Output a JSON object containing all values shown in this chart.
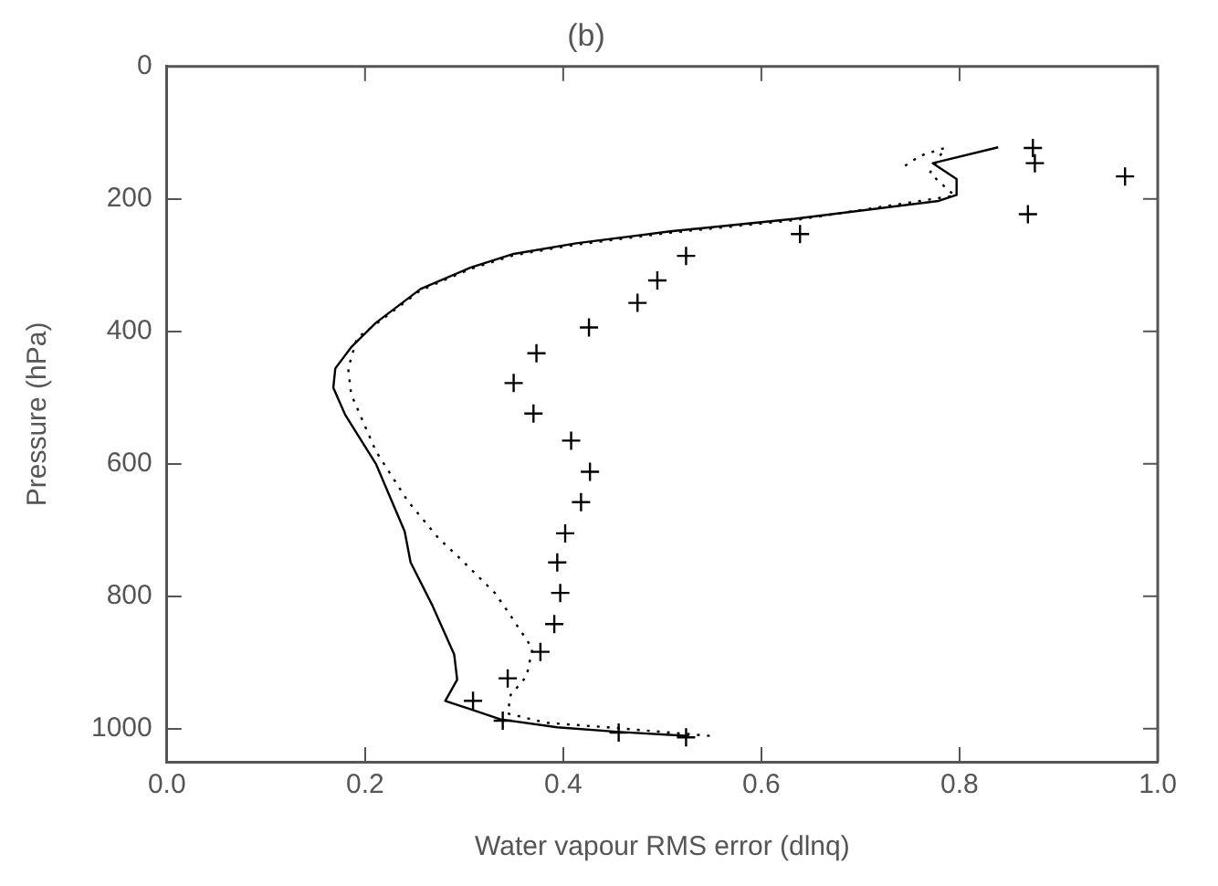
{
  "chart_data": {
    "type": "line",
    "title": "(b)",
    "xlabel": "Water vapour RMS error (dlnq)",
    "ylabel": "Pressure (hPa)",
    "xlim": [
      0,
      1
    ],
    "xticks": [
      {
        "value": 0,
        "label": "0.0"
      },
      {
        "value": 0.2,
        "label": "0.2"
      },
      {
        "value": 0.4,
        "label": "0.4"
      },
      {
        "value": 0.6,
        "label": "0.6"
      },
      {
        "value": 0.8,
        "label": "0.8"
      },
      {
        "value": 1,
        "label": "1.0"
      }
    ],
    "ylim": [
      1050,
      0
    ],
    "yticks": [
      0,
      200,
      400,
      600,
      800,
      1000
    ],
    "grid": false,
    "legend": false,
    "series": [
      {
        "type": "line",
        "line_style": "solid",
        "marker": "none",
        "color": "#000000",
        "x": [
          0.839,
          0.773,
          0.797,
          0.797,
          0.779,
          0.634,
          0.508,
          0.413,
          0.35,
          0.306,
          0.256,
          0.211,
          0.186,
          0.17,
          0.168,
          0.18,
          0.211,
          0.24,
          0.246,
          0.268,
          0.29,
          0.293,
          0.281,
          0.337,
          0.394,
          0.457,
          0.527
        ],
        "values": [
          122,
          146,
          170,
          194,
          203,
          230,
          249,
          267,
          283,
          304,
          336,
          387,
          424,
          456,
          485,
          526,
          600,
          702,
          749,
          814,
          888,
          926,
          958,
          986,
          998,
          1005,
          1011
        ]
      },
      {
        "type": "line",
        "line_style": "dotted",
        "marker": "none",
        "color": "#000000",
        "x": [
          0.745,
          0.76,
          0.785,
          0.77,
          0.795,
          0.634,
          0.508,
          0.413,
          0.35,
          0.306,
          0.256,
          0.211,
          0.192,
          0.183,
          0.186,
          0.211,
          0.243,
          0.274,
          0.3,
          0.331,
          0.344,
          0.369,
          0.363,
          0.347,
          0.344,
          0.382,
          0.445,
          0.549
        ],
        "values": [
          150,
          135,
          123,
          161,
          195,
          232,
          251,
          269,
          285,
          306,
          338,
          389,
          410,
          456,
          495,
          581,
          656,
          712,
          749,
          795,
          823,
          879,
          921,
          949,
          977,
          991,
          998,
          1011
        ]
      },
      {
        "type": "scatter",
        "marker": "cross",
        "color": "#000000",
        "x": [
          0.874,
          0.876,
          0.967,
          0.869,
          0.639,
          0.524,
          0.495,
          0.475,
          0.426,
          0.373,
          0.35,
          0.37,
          0.408,
          0.427,
          0.418,
          0.402,
          0.394,
          0.397,
          0.391,
          0.377,
          0.344,
          0.309,
          0.339,
          0.456,
          0.524
        ],
        "values": [
          123,
          146,
          166,
          223,
          253,
          286,
          323,
          357,
          394,
          433,
          478,
          524,
          565,
          612,
          658,
          705,
          749,
          795,
          842,
          884,
          924,
          958,
          988,
          1006,
          1013
        ]
      }
    ]
  }
}
